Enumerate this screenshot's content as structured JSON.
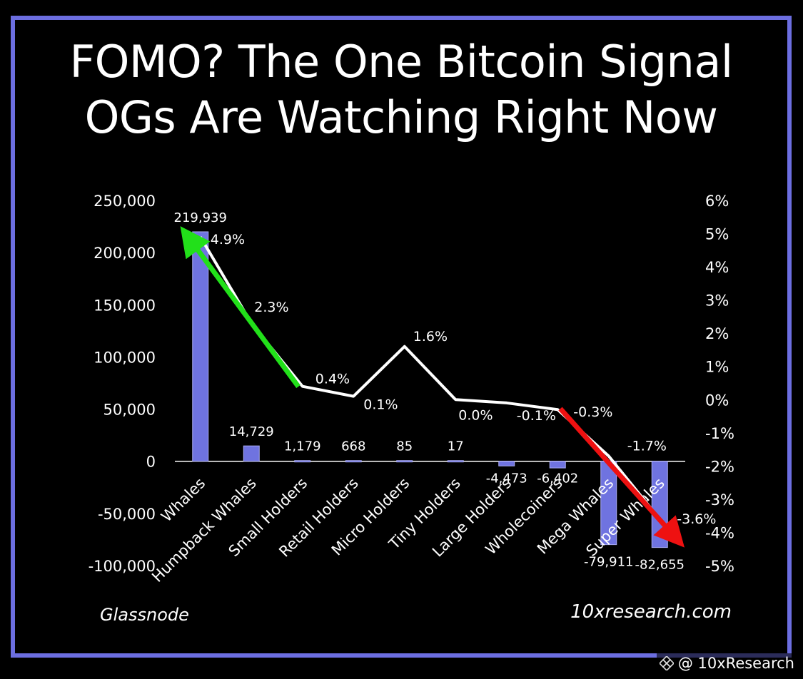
{
  "header": {
    "title_line1": "FOMO? The One Bitcoin Signal",
    "title_line2": "OGs Are Watching Right Now"
  },
  "footer": {
    "source_left": "Glassnode",
    "source_right": "10xresearch.com",
    "watermark": "@ 10xResearch"
  },
  "colors": {
    "bar": "#6f73e0",
    "line": "#ffffff",
    "arrow_up": "#22e01a",
    "arrow_down": "#ee1111",
    "frame": "#6c6ee0",
    "background": "#000000"
  },
  "chart_data": {
    "type": "bar",
    "categories": [
      "Whales",
      "Humpback Whales",
      "Small Holders",
      "Retail Holders",
      "Micro Holders",
      "Tiny Holders",
      "Large Holders",
      "Wholecoiners",
      "Mega Whales",
      "Super Whales"
    ],
    "series": [
      {
        "type": "bar",
        "axis": "left",
        "values": [
          219939,
          14729,
          1179,
          668,
          85,
          17,
          -4473,
          -6402,
          -79911,
          -82655
        ],
        "labels": [
          "219,939",
          "14,729",
          "1,179",
          "668",
          "85",
          "17",
          "-4,473",
          "-6,402",
          "-79,911",
          "-82,655"
        ]
      },
      {
        "type": "line",
        "axis": "right",
        "values": [
          4.9,
          2.3,
          0.4,
          0.1,
          1.6,
          0.0,
          -0.1,
          -0.3,
          -1.7,
          -3.6
        ],
        "labels": [
          "4.9%",
          "2.3%",
          "0.4%",
          "0.1%",
          "1.6%",
          "0.0%",
          "-0.1%",
          "-0.3%",
          "-1.7%",
          "-3.6%"
        ]
      }
    ],
    "y_left": {
      "range": [
        -100000,
        250000
      ],
      "ticks": [
        250000,
        200000,
        150000,
        100000,
        50000,
        0,
        -50000,
        -100000
      ],
      "tick_labels": [
        "250,000",
        "200,000",
        "150,000",
        "100,000",
        "50,000",
        "0",
        "-50,000",
        "-100,000"
      ]
    },
    "y_right": {
      "range": [
        -5,
        6
      ],
      "ticks": [
        6,
        5,
        4,
        3,
        2,
        1,
        0,
        -1,
        -2,
        -3,
        -4,
        -5
      ],
      "tick_labels": [
        "6%",
        "5%",
        "4%",
        "3%",
        "2%",
        "1%",
        "0%",
        "-1%",
        "-2%",
        "-3%",
        "-4%",
        "-5%"
      ]
    },
    "annotations": [
      {
        "type": "arrow",
        "color": "green",
        "from": "Small Holders",
        "to": "Whales"
      },
      {
        "type": "arrow",
        "color": "red",
        "from": "Wholecoiners",
        "to": "Super Whales"
      }
    ],
    "grid": false,
    "legend": "none"
  }
}
